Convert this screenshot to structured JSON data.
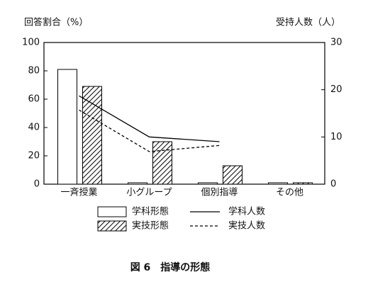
{
  "chart_data": {
    "type": "bar",
    "title": "図 6　指導の形態",
    "y_label": "回答割合（%）",
    "y2_label": "受持人数（人）",
    "categories": [
      "一斉授業",
      "小グループ",
      "個別指導",
      "その他"
    ],
    "series": [
      {
        "name": "学科形態",
        "color": "#ffffff",
        "values": [
          81,
          1,
          1,
          1
        ]
      },
      {
        "name": "実技形態",
        "color": "#ffffff",
        "hatch": true,
        "values": [
          69,
          30,
          13,
          1
        ]
      },
      {
        "name": "学科人数",
        "color": "#000000",
        "kind": "line",
        "axis": "y2",
        "values": [
          18.7,
          10,
          9,
          null
        ]
      },
      {
        "name": "実技人数",
        "color": "#000000",
        "kind": "line",
        "dashed": true,
        "axis": "y2",
        "values": [
          15.7,
          6.9,
          8.2,
          null
        ]
      }
    ],
    "ylim": [
      0,
      100
    ],
    "yticks": [
      0,
      20,
      40,
      60,
      80,
      100
    ],
    "y2lim": [
      0,
      30
    ],
    "y2ticks": [
      0,
      10,
      20,
      30
    ]
  }
}
